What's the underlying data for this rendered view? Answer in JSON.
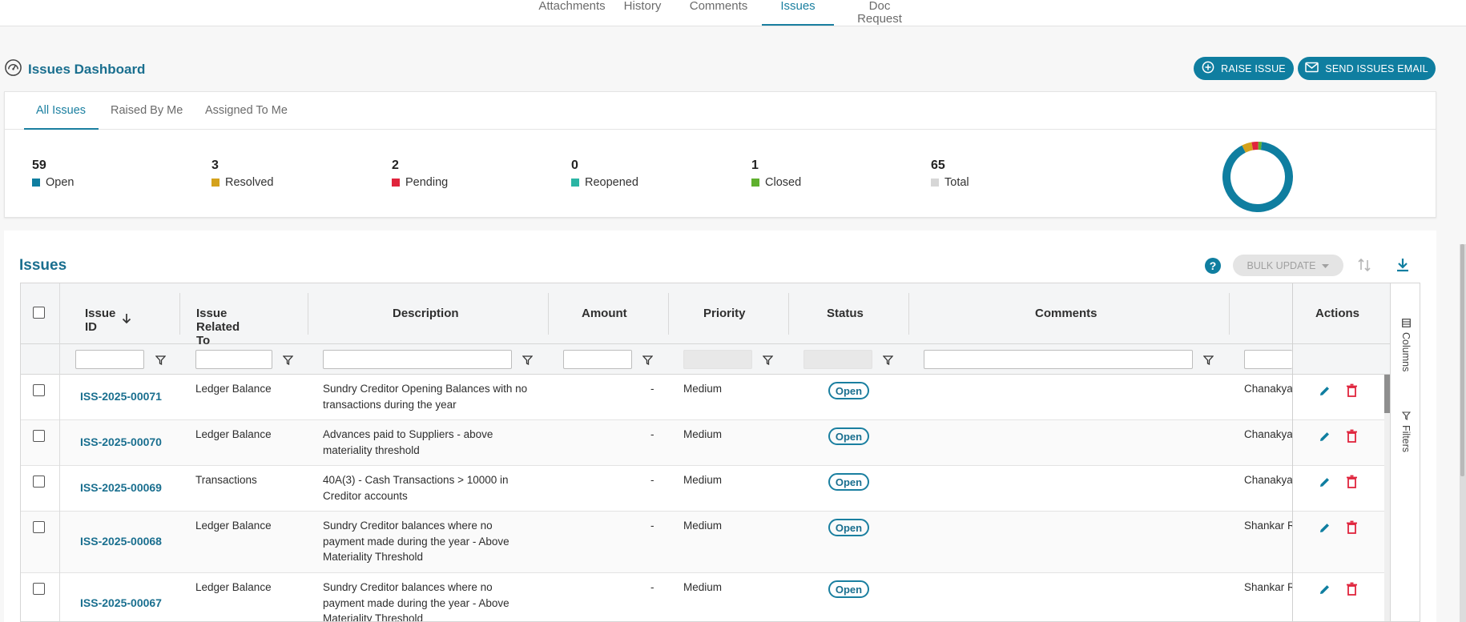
{
  "top_tabs": [
    {
      "label": "Attachments",
      "active": false
    },
    {
      "label": "History",
      "active": false
    },
    {
      "label": "Comments",
      "active": false
    },
    {
      "label": "Issues",
      "active": true
    },
    {
      "label": "Doc Request",
      "active": false
    }
  ],
  "dashboard": {
    "title": "Issues Dashboard",
    "title_icon": "dashboard-gauge-icon",
    "raise_issue_label": "RAISE ISSUE",
    "send_email_label": "SEND ISSUES EMAIL",
    "tabs": [
      {
        "label": "All Issues",
        "active": true
      },
      {
        "label": "Raised By Me",
        "active": false
      },
      {
        "label": "Assigned To Me",
        "active": false
      }
    ],
    "stats": [
      {
        "count": "59",
        "label": "Open",
        "color": "#0f7ea0"
      },
      {
        "count": "3",
        "label": "Resolved",
        "color": "#d4a21c"
      },
      {
        "count": "2",
        "label": "Pending",
        "color": "#e0243c"
      },
      {
        "count": "0",
        "label": "Reopened",
        "color": "#2bb5a4"
      },
      {
        "count": "1",
        "label": "Closed",
        "color": "#5fb02e"
      },
      {
        "count": "65",
        "label": "Total",
        "color": "#d6d6d6"
      }
    ]
  },
  "issues": {
    "title": "Issues",
    "help_label": "?",
    "bulk_update_label": "BULK UPDATE",
    "columns": [
      "Issue ID",
      "Issue Related To",
      "Description",
      "Amount",
      "Priority",
      "Status",
      "Comments",
      "Actions"
    ],
    "side_columns_label": "Columns",
    "side_filters_label": "Filters",
    "rows": [
      {
        "id": "ISS-2025-00071",
        "related": "Ledger Balance",
        "desc1": "Sundry Creditor Opening Balances with no",
        "desc2": "transactions during the year",
        "desc3": "",
        "amount": "-",
        "priority": "Medium",
        "status": "Open",
        "assignee": "Chanakya"
      },
      {
        "id": "ISS-2025-00070",
        "related": "Ledger Balance",
        "desc1": "Advances paid to Suppliers - above",
        "desc2": "materiality threshold",
        "desc3": "",
        "amount": "-",
        "priority": "Medium",
        "status": "Open",
        "assignee": "Chanakya"
      },
      {
        "id": "ISS-2025-00069",
        "related": "Transactions",
        "desc1": "40A(3) - Cash Transactions > 10000 in",
        "desc2": "Creditor accounts",
        "desc3": "",
        "amount": "-",
        "priority": "Medium",
        "status": "Open",
        "assignee": "Chanakya"
      },
      {
        "id": "ISS-2025-00068",
        "related": "Ledger Balance",
        "desc1": "Sundry Creditor balances where no",
        "desc2": "payment made during the year - Above",
        "desc3": "Materiality Threshold",
        "amount": "-",
        "priority": "Medium",
        "status": "Open",
        "assignee": "Shankar R"
      },
      {
        "id": "ISS-2025-00067",
        "related": "Ledger Balance",
        "desc1": "Sundry Creditor balances where no",
        "desc2": "payment made during the year - Above",
        "desc3": "Materiality Threshold",
        "amount": "-",
        "priority": "Medium",
        "status": "Open",
        "assignee": "Shankar R"
      }
    ]
  }
}
